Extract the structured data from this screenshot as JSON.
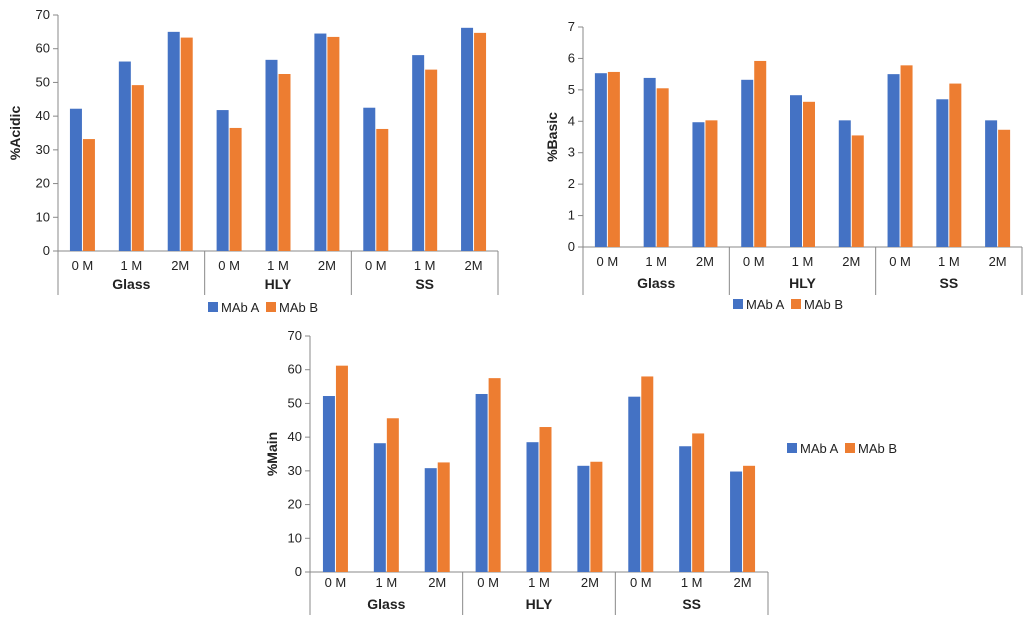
{
  "legend": {
    "series_a": "MAb A",
    "series_b": "MAb B"
  },
  "colors": {
    "series_a": "#4472C4",
    "series_b": "#ED7D31",
    "axis": "#888888",
    "text": "#222222"
  },
  "chart_data": [
    {
      "type": "bar",
      "ylabel": "%Acidic",
      "ylim": [
        0,
        70
      ],
      "yticks": [
        0,
        10,
        20,
        30,
        40,
        50,
        60,
        70
      ],
      "groups": [
        "Glass",
        "HLY",
        "SS"
      ],
      "categories": [
        "0 M",
        "1 M",
        "2M",
        "0 M",
        "1 M",
        "2M",
        "0 M",
        "1 M",
        "2M"
      ],
      "series": [
        {
          "name": "MAb A",
          "values": [
            42.2,
            56.2,
            65.0,
            41.8,
            56.7,
            64.5,
            42.5,
            58.1,
            66.2
          ]
        },
        {
          "name": "MAb B",
          "values": [
            33.2,
            49.2,
            63.3,
            36.5,
            52.5,
            63.5,
            36.2,
            53.8,
            64.7
          ]
        }
      ],
      "legend_position": "bottom"
    },
    {
      "type": "bar",
      "ylabel": "%Basic",
      "ylim": [
        0,
        7
      ],
      "yticks": [
        0,
        1,
        2,
        3,
        4,
        5,
        6,
        7
      ],
      "groups": [
        "Glass",
        "HLY",
        "SS"
      ],
      "categories": [
        "0 M",
        "1 M",
        "2M",
        "0 M",
        "1 M",
        "2M",
        "0 M",
        "1 M",
        "2M"
      ],
      "series": [
        {
          "name": "MAb A",
          "values": [
            5.53,
            5.38,
            3.97,
            5.32,
            4.83,
            4.03,
            5.5,
            4.7,
            4.03
          ]
        },
        {
          "name": "MAb B",
          "values": [
            5.57,
            5.05,
            4.03,
            5.92,
            4.62,
            3.55,
            5.78,
            5.2,
            3.73
          ]
        }
      ],
      "legend_position": "bottom"
    },
    {
      "type": "bar",
      "ylabel": "%Main",
      "ylim": [
        0,
        70
      ],
      "yticks": [
        0,
        10,
        20,
        30,
        40,
        50,
        60,
        70
      ],
      "groups": [
        "Glass",
        "HLY",
        "SS"
      ],
      "categories": [
        "0 M",
        "1 M",
        "2M",
        "0 M",
        "1 M",
        "2M",
        "0 M",
        "1 M",
        "2M"
      ],
      "series": [
        {
          "name": "MAb A",
          "values": [
            52.2,
            38.2,
            30.8,
            52.8,
            38.5,
            31.5,
            52.0,
            37.3,
            29.8
          ]
        },
        {
          "name": "MAb B",
          "values": [
            61.2,
            45.6,
            32.5,
            57.5,
            43.0,
            32.7,
            58.0,
            41.1,
            31.5
          ]
        }
      ],
      "legend_position": "right"
    }
  ]
}
